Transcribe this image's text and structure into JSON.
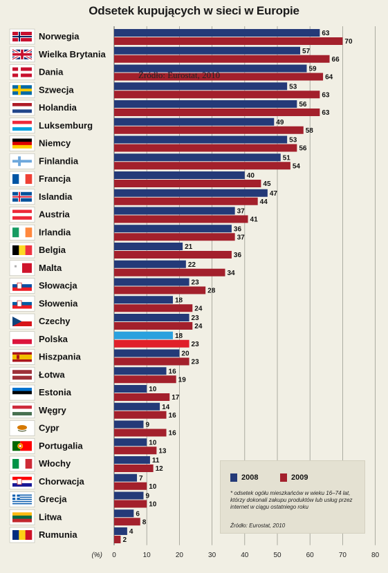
{
  "title": "Odsetek kupujących w sieci w Europie",
  "overlay_source": "Źródło: Eurostat, 2010",
  "colors": {
    "y2008": "#243a78",
    "y2009": "#a3202c",
    "poland2008": "#2aa1de",
    "poland2009": "#e0202a"
  },
  "legend": {
    "labels": [
      "2008",
      "2009"
    ],
    "note": "* odsetek ogółu mieszkańców w wieku 16–74 lat, którzy dokonali zakupu produktów lub usług przez internet w ciągu ostatniego roku",
    "source": "Źródło: Eurostat, 2010"
  },
  "chart_data": {
    "type": "bar",
    "orientation": "horizontal",
    "title": "Odsetek kupujących w sieci w Europie",
    "xlabel": "(%)",
    "xlim": [
      0,
      80
    ],
    "xticks": [
      0,
      10,
      20,
      30,
      40,
      50,
      60,
      70,
      80
    ],
    "grid": true,
    "legend_position": "bottom-right",
    "categories": [
      "Norwegia",
      "Wielka Brytania",
      "Dania",
      "Szwecja",
      "Holandia",
      "Luksemburg",
      "Niemcy",
      "Finlandia",
      "Francja",
      "Islandia",
      "Austria",
      "Irlandia",
      "Belgia",
      "Malta",
      "Słowacja",
      "Słowenia",
      "Czechy",
      "Polska",
      "Hiszpania",
      "Łotwa",
      "Estonia",
      "Węgry",
      "Cypr",
      "Portugalia",
      "Włochy",
      "Chorwacja",
      "Grecja",
      "Litwa",
      "Rumunia"
    ],
    "series": [
      {
        "name": "2008",
        "values": [
          63,
          57,
          59,
          53,
          56,
          49,
          53,
          51,
          40,
          47,
          37,
          36,
          21,
          22,
          23,
          18,
          23,
          18,
          20,
          16,
          10,
          14,
          9,
          10,
          11,
          7,
          9,
          6,
          4
        ]
      },
      {
        "name": "2009",
        "values": [
          70,
          66,
          64,
          63,
          63,
          58,
          56,
          54,
          45,
          44,
          41,
          37,
          36,
          34,
          28,
          24,
          24,
          23,
          23,
          19,
          17,
          16,
          16,
          13,
          12,
          10,
          10,
          8,
          2
        ]
      }
    ],
    "highlight_category": "Polska"
  },
  "flags": [
    {
      "name": "norway-flag-icon",
      "type": "nordic",
      "bg": "#c8102e",
      "cross": "#ffffff",
      "inner": "#00205b"
    },
    {
      "name": "uk-flag-icon",
      "type": "uk"
    },
    {
      "name": "denmark-flag-icon",
      "type": "nordic",
      "bg": "#c8102e",
      "cross": "#ffffff"
    },
    {
      "name": "sweden-flag-icon",
      "type": "nordic",
      "bg": "#006aa7",
      "cross": "#fecc00"
    },
    {
      "name": "netherlands-flag-icon",
      "type": "h3",
      "c": [
        "#ae1c28",
        "#ffffff",
        "#21468b"
      ]
    },
    {
      "name": "luxembourg-flag-icon",
      "type": "h3",
      "c": [
        "#ed2939",
        "#ffffff",
        "#00a1de"
      ]
    },
    {
      "name": "germany-flag-icon",
      "type": "h3",
      "c": [
        "#000000",
        "#dd0000",
        "#ffce00"
      ]
    },
    {
      "name": "finland-flag-icon",
      "type": "nordic",
      "bg": "#ffffff",
      "cross": "#6ea8dc"
    },
    {
      "name": "france-flag-icon",
      "type": "v3",
      "c": [
        "#0055a4",
        "#ffffff",
        "#ef4135"
      ]
    },
    {
      "name": "iceland-flag-icon",
      "type": "nordic",
      "bg": "#02529c",
      "cross": "#ffffff",
      "inner": "#dc1e35"
    },
    {
      "name": "austria-flag-icon",
      "type": "h3",
      "c": [
        "#ed2939",
        "#ffffff",
        "#ed2939"
      ]
    },
    {
      "name": "ireland-flag-icon",
      "type": "v3",
      "c": [
        "#169b62",
        "#ffffff",
        "#ff883e"
      ]
    },
    {
      "name": "belgium-flag-icon",
      "type": "v3",
      "c": [
        "#000000",
        "#fdda24",
        "#ef3340"
      ]
    },
    {
      "name": "malta-flag-icon",
      "type": "v2",
      "c": [
        "#ffffff",
        "#cf142b"
      ]
    },
    {
      "name": "slovakia-flag-icon",
      "type": "h3emb",
      "c": [
        "#ffffff",
        "#0b4ea2",
        "#ee1c25"
      ]
    },
    {
      "name": "slovenia-flag-icon",
      "type": "h3emb",
      "c": [
        "#ffffff",
        "#005da4",
        "#ed1c24"
      ]
    },
    {
      "name": "czech-flag-icon",
      "type": "czech"
    },
    {
      "name": "poland-flag-icon",
      "type": "h2",
      "c": [
        "#ffffff",
        "#dc143c"
      ]
    },
    {
      "name": "spain-flag-icon",
      "type": "spain"
    },
    {
      "name": "latvia-flag-icon",
      "type": "latvia"
    },
    {
      "name": "estonia-flag-icon",
      "type": "h3",
      "c": [
        "#0072ce",
        "#000000",
        "#ffffff"
      ]
    },
    {
      "name": "hungary-flag-icon",
      "type": "h3",
      "c": [
        "#ce2939",
        "#ffffff",
        "#477050"
      ]
    },
    {
      "name": "cyprus-flag-icon",
      "type": "cyprus"
    },
    {
      "name": "portugal-flag-icon",
      "type": "portugal"
    },
    {
      "name": "italy-flag-icon",
      "type": "v3",
      "c": [
        "#009246",
        "#ffffff",
        "#ce2b37"
      ]
    },
    {
      "name": "croatia-flag-icon",
      "type": "h3emb",
      "c": [
        "#ff0000",
        "#ffffff",
        "#171796"
      ]
    },
    {
      "name": "greece-flag-icon",
      "type": "greece"
    },
    {
      "name": "lithuania-flag-icon",
      "type": "h3",
      "c": [
        "#fdb913",
        "#006a44",
        "#c1272d"
      ]
    },
    {
      "name": "romania-flag-icon",
      "type": "v3",
      "c": [
        "#002b7f",
        "#fcd116",
        "#ce1126"
      ]
    }
  ]
}
